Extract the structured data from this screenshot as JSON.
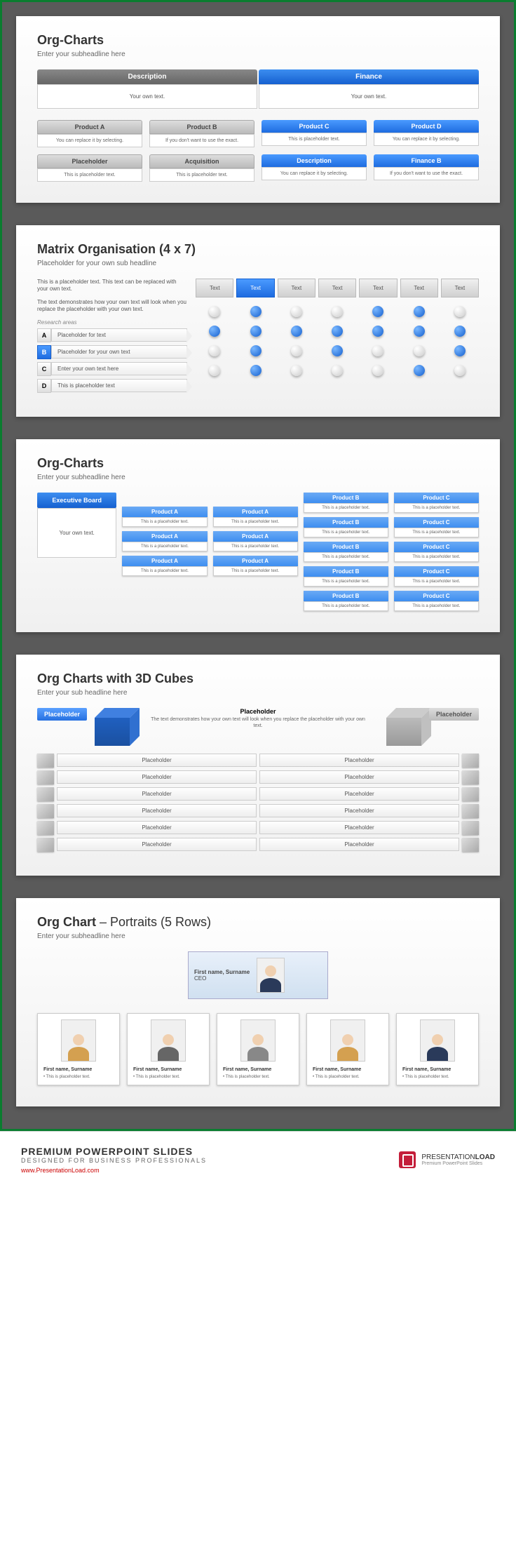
{
  "colors": {
    "blue": "#1e6ce0",
    "blue_light": "#4a9aff",
    "gray": "#888",
    "border": "#ccc",
    "bg_dark": "#5a5a5a",
    "green_frame": "#0a7d2f"
  },
  "slide1": {
    "title": "Org-Charts",
    "sub": "Enter your subheadline here",
    "top": [
      {
        "header": "Description",
        "text": "Your own text.",
        "style": "gray"
      },
      {
        "header": "Finance",
        "text": "Your own text.",
        "style": "blue"
      }
    ],
    "grid": [
      {
        "label": "Product A",
        "text": "You can replace it by selecting.",
        "style": "gray"
      },
      {
        "label": "Product B",
        "text": "If you don't want to use the exact.",
        "style": "gray"
      },
      {
        "label": "Product C",
        "text": "This is placeholder text.",
        "style": "blue"
      },
      {
        "label": "Product D",
        "text": "You can replace it by selecting.",
        "style": "blue"
      },
      {
        "label": "Placeholder",
        "text": "This is placeholder text.",
        "style": "gray"
      },
      {
        "label": "Acquisition",
        "text": "This is placeholder text.",
        "style": "gray"
      },
      {
        "label": "Description",
        "text": "You can replace it by selecting.",
        "style": "blue"
      },
      {
        "label": "Finance B",
        "text": "If you don't want to use the exact.",
        "style": "blue"
      }
    ]
  },
  "slide2": {
    "title": "Matrix Organisation (4 x 7)",
    "sub": "Placeholder for your own sub headline",
    "para1": "This is a placeholder text. This text can be replaced with your own text.",
    "para2": "The text demonstrates how your own text will look when you replace the placeholder with your own text.",
    "research": "Research areas",
    "rows": [
      {
        "letter": "A",
        "text": "Placeholder for text",
        "blue": false
      },
      {
        "letter": "B",
        "text": "Placeholder for your own text",
        "blue": true
      },
      {
        "letter": "C",
        "text": "Enter your own text here",
        "blue": false
      },
      {
        "letter": "D",
        "text": "This is placeholder text",
        "blue": false
      }
    ],
    "cols": [
      {
        "label": "Text",
        "blue": false
      },
      {
        "label": "Text",
        "blue": true
      },
      {
        "label": "Text",
        "blue": false
      },
      {
        "label": "Text",
        "blue": false
      },
      {
        "label": "Text",
        "blue": false
      },
      {
        "label": "Text",
        "blue": false
      },
      {
        "label": "Text",
        "blue": false
      }
    ],
    "matrix": [
      [
        "g",
        "b",
        "g",
        "g",
        "b",
        "b",
        "g"
      ],
      [
        "b",
        "b",
        "b",
        "b",
        "b",
        "b",
        "b"
      ],
      [
        "g",
        "b",
        "g",
        "b",
        "g",
        "g",
        "b"
      ],
      [
        "g",
        "b",
        "g",
        "g",
        "g",
        "b",
        "g"
      ]
    ]
  },
  "slide3": {
    "title": "Org-Charts",
    "sub": "Enter your subheadline here",
    "exec": {
      "header": "Executive Board",
      "text": "Your own text."
    },
    "cols": [
      [
        {
          "h": "Product A",
          "t": "This is a placeholder text."
        },
        {
          "h": "Product A",
          "t": "This is a placeholder text."
        },
        {
          "h": "Product A",
          "t": "This is a placeholder text."
        }
      ],
      [
        {
          "h": "Product A",
          "t": "This is a placeholder text."
        },
        {
          "h": "Product A",
          "t": "This is a placeholder text."
        },
        {
          "h": "Product A",
          "t": "This is a placeholder text."
        }
      ],
      [
        {
          "h": "Product B",
          "t": "This is a placeholder text."
        },
        {
          "h": "Product B",
          "t": "This is a placeholder text."
        },
        {
          "h": "Product B",
          "t": "This is a placeholder text."
        },
        {
          "h": "Product B",
          "t": "This is a placeholder text."
        },
        {
          "h": "Product B",
          "t": "This is a placeholder text."
        }
      ],
      [
        {
          "h": "Product C",
          "t": "This is a placeholder text."
        },
        {
          "h": "Product C",
          "t": "This is a placeholder text."
        },
        {
          "h": "Product C",
          "t": "This is a placeholder text."
        },
        {
          "h": "Product C",
          "t": "This is a placeholder text."
        },
        {
          "h": "Product C",
          "t": "This is a placeholder text."
        }
      ]
    ]
  },
  "slide4": {
    "title": "Org Charts with 3D Cubes",
    "sub": "Enter your sub headline here",
    "left_tag": "Placeholder",
    "right_tag": "Placeholder",
    "mid_h": "Placeholder",
    "mid_t": "The text demonstrates how your own text will look when you replace the placeholder with your own text.",
    "rows": [
      [
        "Placeholder",
        "Placeholder"
      ],
      [
        "Placeholder",
        "Placeholder"
      ],
      [
        "Placeholder",
        "Placeholder"
      ],
      [
        "Placeholder",
        "Placeholder"
      ],
      [
        "Placeholder",
        "Placeholder"
      ],
      [
        "Placeholder",
        "Placeholder"
      ]
    ]
  },
  "slide5": {
    "title_a": "Org Chart",
    "title_b": " – Portraits (5 Rows)",
    "sub": "Enter your subheadline here",
    "ceo": {
      "name": "First name, Surname",
      "role": "CEO"
    },
    "people": [
      {
        "name": "First name, Surname",
        "text": "This is placeholder text.",
        "body": "#d4a050"
      },
      {
        "name": "First name, Surname",
        "text": "This is placeholder text.",
        "body": "#666"
      },
      {
        "name": "First name, Surname",
        "text": "This is placeholder text.",
        "body": "#888"
      },
      {
        "name": "First name, Surname",
        "text": "This is placeholder text.",
        "body": "#d4a050"
      },
      {
        "name": "First name, Surname",
        "text": "This is placeholder text.",
        "body": "#2a3a5a"
      }
    ]
  },
  "footer": {
    "line1": "PREMIUM POWERPOINT SLIDES",
    "line2": "Designed for Business Professionals",
    "url": "www.PresentationLoad.com",
    "brand_a": "PRESENTATION",
    "brand_b": "LOAD",
    "brand_sub": "Premium PowerPoint Slides"
  }
}
